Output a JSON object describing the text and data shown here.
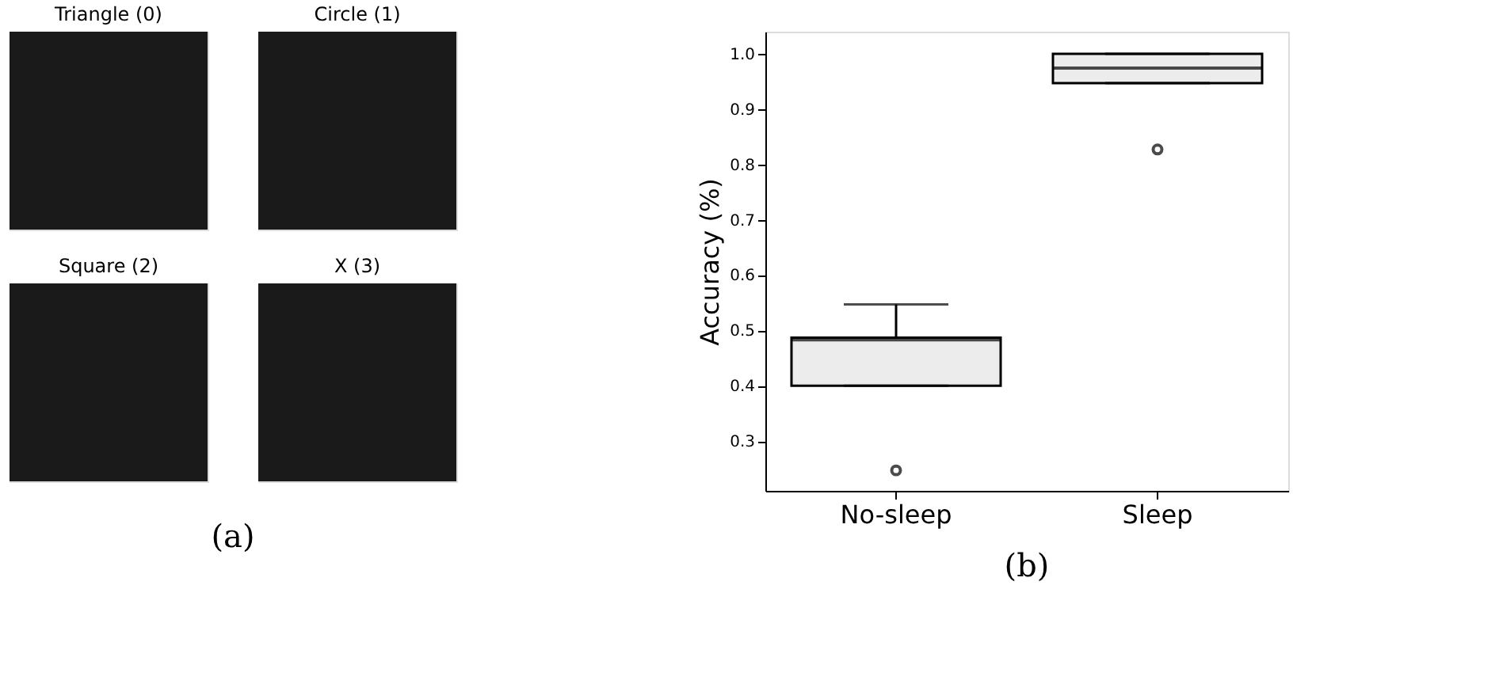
{
  "chart_data": [
    {
      "type": "other",
      "annotations": [
        "Triangle (0)",
        "Circle (1)",
        "Square (2)",
        "X (3)",
        "(a)"
      ]
    },
    {
      "type": "box",
      "categories": [
        "No-sleep",
        "Sleep"
      ],
      "ylabel": "Accuracy (%)",
      "ylim": [
        0.21,
        1.04
      ],
      "yticks": [
        0.3,
        0.4,
        0.5,
        0.6,
        0.7,
        0.8,
        0.9,
        {
          "value": 1.0,
          "label": "1.0"
        }
      ],
      "grid": false,
      "boxes": [
        {
          "low": 0.4,
          "q1": 0.4,
          "median": 0.483,
          "q3": 0.487,
          "high": 0.547,
          "outliers": [
            0.247
          ]
        },
        {
          "low": 0.947,
          "q1": 0.947,
          "median": 0.974,
          "q3": 1.0,
          "high": 1.0,
          "outliers": [
            0.827
          ]
        }
      ],
      "annotations": [
        "(b)"
      ]
    }
  ]
}
